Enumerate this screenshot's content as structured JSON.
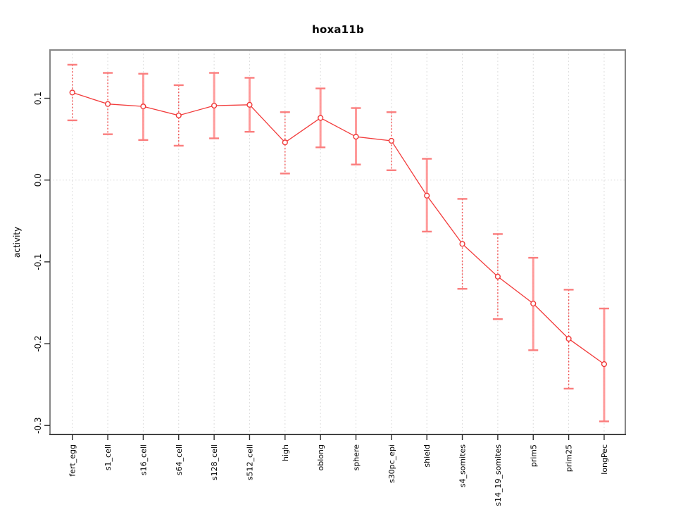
{
  "chart_data": {
    "type": "line",
    "title": "hoxa11b",
    "xlabel": "",
    "ylabel": "activity",
    "legend": "none",
    "grid": {
      "vertical_per_category": true,
      "horizontal_gridline_at": 0
    },
    "categories": [
      "fert_egg",
      "s1_cell",
      "s16_cell",
      "s64_cell",
      "s128_cell",
      "s512_cell",
      "high",
      "oblong",
      "sphere",
      "s30pc_epi",
      "shield",
      "s4_somites",
      "s14_19_somites",
      "prim5",
      "prim25",
      "longPec"
    ],
    "series": [
      {
        "name": "activity",
        "marker": "open-circle",
        "values": [
          0.107,
          0.093,
          0.09,
          0.079,
          0.091,
          0.092,
          0.046,
          0.076,
          0.053,
          0.048,
          -0.019,
          -0.078,
          -0.118,
          -0.151,
          -0.194,
          -0.225
        ],
        "error_upper": [
          0.141,
          0.131,
          0.13,
          0.116,
          0.131,
          0.125,
          0.083,
          0.112,
          0.088,
          0.083,
          0.026,
          -0.023,
          -0.066,
          -0.095,
          -0.134,
          -0.157
        ],
        "error_lower": [
          0.073,
          0.056,
          0.049,
          0.042,
          0.051,
          0.059,
          0.008,
          0.04,
          0.019,
          0.012,
          -0.063,
          -0.133,
          -0.17,
          -0.208,
          -0.255,
          -0.295
        ]
      }
    ],
    "error_bar_line_styles": [
      "dotted",
      "dotted",
      "solid",
      "dotted",
      "solid",
      "solid",
      "dotted",
      "solid",
      "solid",
      "dotted",
      "solid",
      "dotted",
      "dotted",
      "solid",
      "dotted",
      "solid"
    ],
    "yticks": {
      "values": [
        0.1,
        0.0,
        -0.1,
        -0.2,
        -0.3
      ],
      "labels": [
        "0.1",
        "0.0",
        "-0.1",
        "-0.2",
        "-0.3"
      ]
    },
    "ylim": [
      -0.311,
      0.159
    ],
    "colors": {
      "series_line": "#f23b3b",
      "marker_stroke": "#ef3838",
      "error_bar_solid": "#ff9090",
      "error_bar_dotted": "#f25555",
      "error_bar_cap": "#fa7d7d",
      "gridline": "#dcdcdc",
      "plot_border": "#868686",
      "axis_line": "#2b2b2b",
      "tick_text": "#000000",
      "background": "#ffffff"
    }
  }
}
